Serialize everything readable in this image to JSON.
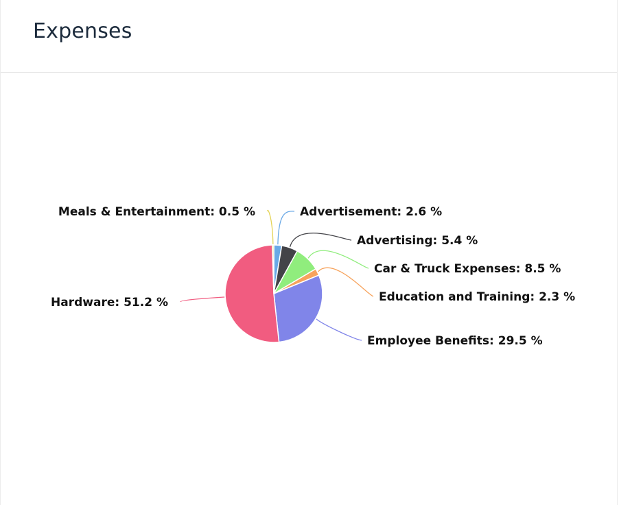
{
  "card": {
    "title": "Expenses"
  },
  "chart_data": {
    "type": "pie",
    "title": "",
    "slices": [
      {
        "label": "Advertisement",
        "value": 2.6,
        "color": "#6aa9e6",
        "display": "Advertisement: 2.6 %"
      },
      {
        "label": "Advertising",
        "value": 5.4,
        "color": "#434348",
        "display": "Advertising: 5.4 %"
      },
      {
        "label": "Car & Truck Expenses",
        "value": 8.5,
        "color": "#90ed7d",
        "display": "Car & Truck Expenses: 8.5 %"
      },
      {
        "label": "Education and Training",
        "value": 2.3,
        "color": "#f7a35c",
        "display": "Education and Training: 2.3 %"
      },
      {
        "label": "Employee Benefits",
        "value": 29.5,
        "color": "#8085e9",
        "display": "Employee Benefits: 29.5 %"
      },
      {
        "label": "Hardware",
        "value": 51.2,
        "color": "#f15c80",
        "display": "Hardware: 51.2 %"
      },
      {
        "label": "Meals & Entertainment",
        "value": 0.5,
        "color": "#e4d354",
        "display": "Meals & Entertainment: 0.5 %"
      }
    ],
    "legend": "none",
    "data_labels": "outside with connector lines"
  }
}
